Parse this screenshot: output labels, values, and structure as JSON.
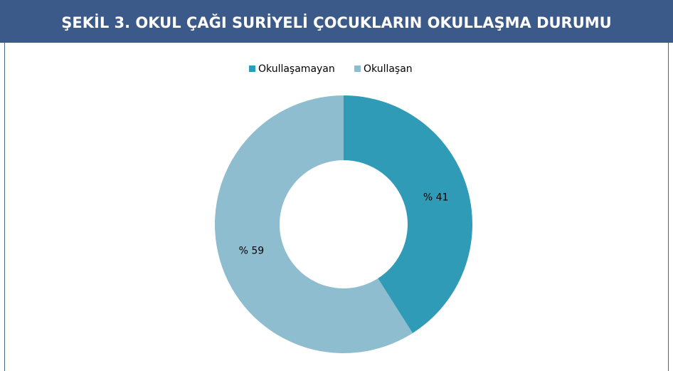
{
  "chart_data": {
    "type": "donut",
    "title": "ŞEKİL 3. OKUL ÇAĞI SURİYELİ ÇOCUKLARIN OKULLAŞMA DURUMU",
    "categories": [
      "Okullaşamayan",
      "Okullaşan"
    ],
    "values": [
      41,
      59
    ],
    "value_labels": [
      "% 41",
      "% 59"
    ],
    "colors": [
      "#2f9bb6",
      "#8dbdcf"
    ],
    "legend": "top"
  }
}
